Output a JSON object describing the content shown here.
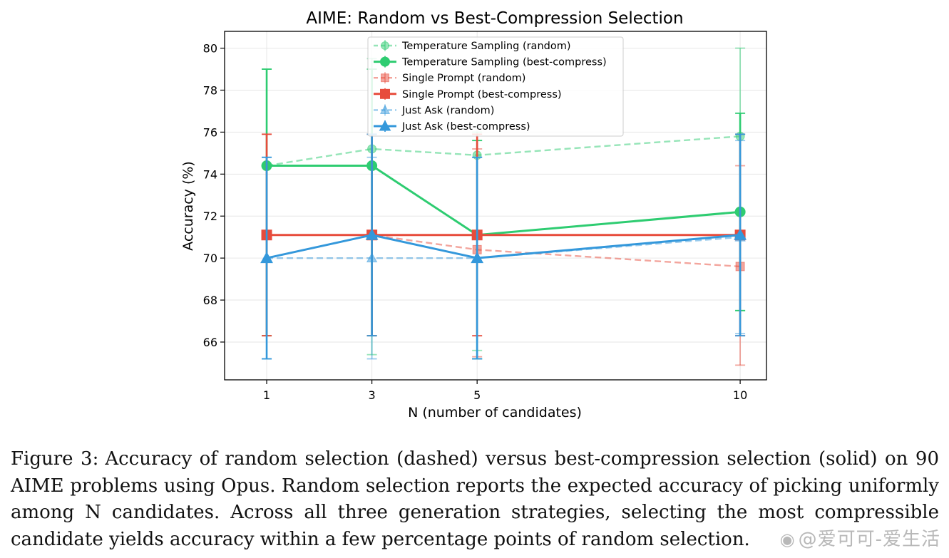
{
  "chart_data": {
    "type": "line",
    "title": "AIME: Random vs Best-Compression Selection",
    "xlabel": "N (number of candidates)",
    "ylabel": "Accuracy (%)",
    "x": [
      1,
      3,
      5,
      10
    ],
    "x_tick_labels": [
      "1",
      "3",
      "5",
      "10"
    ],
    "xlim": [
      0.2,
      10.5
    ],
    "ylim": [
      64.2,
      80.8
    ],
    "y_ticks": [
      66,
      68,
      70,
      72,
      74,
      76,
      78,
      80
    ],
    "y_tick_labels": [
      "66",
      "68",
      "70",
      "72",
      "74",
      "76",
      "78",
      "80"
    ],
    "grid": true,
    "legend_position": "top-center",
    "series": [
      {
        "name": "Temperature Sampling (random)",
        "color": "#2ecc71",
        "style": "dashed",
        "marker": "circle",
        "alpha": 0.5,
        "values": [
          74.4,
          75.2,
          74.9,
          75.8
        ],
        "err_low": [
          66.3,
          65.4,
          65.6,
          67.5
        ],
        "err_high": [
          79.0,
          79.5,
          76.0,
          80.0
        ]
      },
      {
        "name": "Temperature Sampling (best-compress)",
        "color": "#2ecc71",
        "style": "solid",
        "marker": "circle",
        "alpha": 1.0,
        "values": [
          74.4,
          74.4,
          71.1,
          72.2
        ],
        "err_low": [
          66.3,
          66.3,
          65.2,
          67.5
        ],
        "err_high": [
          79.0,
          79.0,
          75.6,
          76.9
        ]
      },
      {
        "name": "Single Prompt (random)",
        "color": "#e74c3c",
        "style": "dashed",
        "marker": "square",
        "alpha": 0.5,
        "values": [
          71.1,
          71.1,
          70.4,
          69.6
        ],
        "err_low": [
          66.3,
          66.3,
          65.3,
          64.9
        ],
        "err_high": [
          75.9,
          75.9,
          75.2,
          74.4
        ]
      },
      {
        "name": "Single Prompt (best-compress)",
        "color": "#e74c3c",
        "style": "solid",
        "marker": "square",
        "alpha": 1.0,
        "values": [
          71.1,
          71.1,
          71.1,
          71.1
        ],
        "err_low": [
          66.3,
          66.3,
          66.3,
          66.3
        ],
        "err_high": [
          75.9,
          75.9,
          75.9,
          75.9
        ]
      },
      {
        "name": "Just Ask (random)",
        "color": "#3498db",
        "style": "dashed",
        "marker": "triangle",
        "alpha": 0.5,
        "values": [
          70.0,
          70.0,
          70.0,
          71.0
        ],
        "err_low": [
          65.2,
          65.2,
          65.2,
          66.4
        ],
        "err_high": [
          74.8,
          74.8,
          74.8,
          75.6
        ]
      },
      {
        "name": "Just Ask (best-compress)",
        "color": "#3498db",
        "style": "solid",
        "marker": "triangle",
        "alpha": 1.0,
        "values": [
          70.0,
          71.1,
          70.0,
          71.1
        ],
        "err_low": [
          65.2,
          66.3,
          65.2,
          66.3
        ],
        "err_high": [
          74.8,
          75.9,
          74.8,
          75.9
        ]
      }
    ]
  },
  "caption": {
    "label": "Figure 3:",
    "text": "Accuracy of random selection (dashed) versus best-compression selection (solid) on 90 AIME problems using Opus. Random selection reports the expected accuracy of picking uniformly among N candidates.  Across all three generation strategies, selecting the most compressible candidate yields accuracy within a few percentage points of random selection."
  },
  "watermark": {
    "text": "@爱可可-爱生活"
  }
}
